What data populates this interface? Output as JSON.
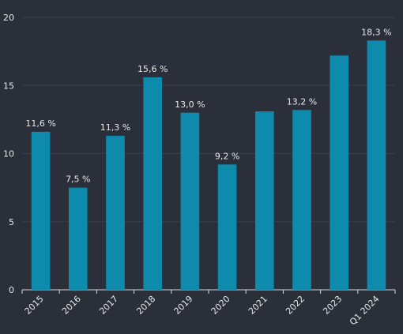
{
  "chart_data": {
    "type": "bar",
    "title": "",
    "xlabel": "",
    "ylabel": "",
    "categories": [
      "2015",
      "2016",
      "2017",
      "2018",
      "2019",
      "2020",
      "2021",
      "2022",
      "2023",
      "Q1 2024"
    ],
    "values": [
      11.6,
      7.5,
      11.3,
      15.6,
      13.0,
      9.2,
      13.1,
      13.2,
      17.2,
      18.3
    ],
    "data_labels": [
      "11,6 %",
      "7,5 %",
      "11,3 %",
      "15,6 %",
      "13,0 %",
      "9,2 %",
      "",
      "13,2 %",
      "",
      "18,3 %"
    ],
    "y_ticks": [
      "0",
      "5",
      "10",
      "15",
      "20"
    ],
    "ylim": [
      0,
      20
    ],
    "grid": true,
    "legend": "none",
    "colors": {
      "background": "#2b2f3a",
      "bar": "#0e8aad",
      "grid": "#3a3f4b",
      "axis": "#d9d9d9",
      "text": "#e8e8e8"
    }
  }
}
